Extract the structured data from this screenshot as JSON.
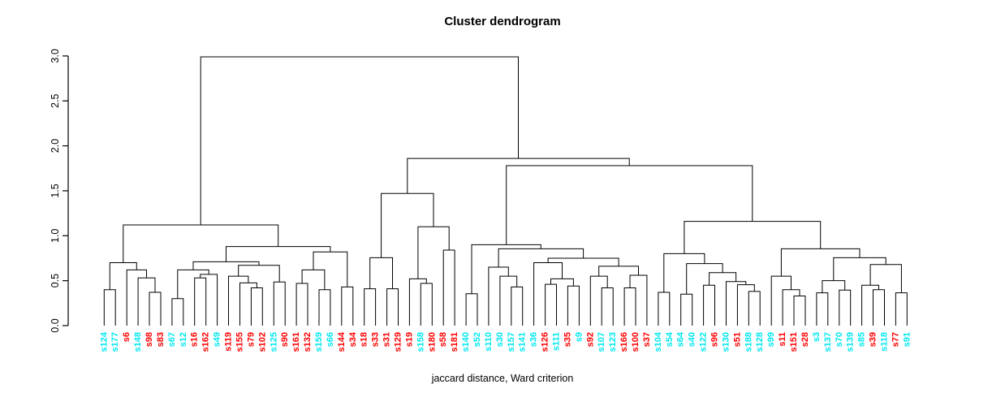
{
  "title": "Cluster dendrogram",
  "x_caption": "jaccard distance, Ward criterion",
  "chart_data": {
    "type": "dendrogram",
    "title": "Cluster dendrogram",
    "caption": "jaccard distance, Ward criterion",
    "y_axis": {
      "ticks": [
        "0.0",
        "0.5",
        "1.0",
        "1.5",
        "2.0",
        "2.5",
        "3.0"
      ],
      "range": [
        0,
        3.0
      ],
      "grid": false
    },
    "legend": "none",
    "label_palette": {
      "cyan": "#00E8F0",
      "red": "#FF0000"
    },
    "line_color": "#000000",
    "leaf_colors": {
      "s124": "cyan",
      "s177": "cyan",
      "s6": "red",
      "s148": "cyan",
      "s98": "red",
      "s83": "red",
      "s67": "cyan",
      "s12": "cyan",
      "s16": "red",
      "s162": "red",
      "s49": "cyan",
      "s119": "red",
      "s155": "red",
      "s79": "red",
      "s102": "red",
      "s125": "cyan",
      "s90": "red",
      "s161": "red",
      "s132": "red",
      "s159": "cyan",
      "s66": "cyan",
      "s144": "red",
      "s34": "red",
      "s18": "red",
      "s33": "red",
      "s31": "red",
      "s129": "red",
      "s19": "red",
      "s158": "cyan",
      "s180": "red",
      "s58": "red",
      "s181": "red",
      "s140": "cyan",
      "s52": "cyan",
      "s110": "cyan",
      "s30": "cyan",
      "s157": "cyan",
      "s141": "cyan",
      "s36": "cyan",
      "s126": "red",
      "s111": "cyan",
      "s35": "red",
      "s9": "cyan",
      "s92": "red",
      "s107": "cyan",
      "s123": "cyan",
      "s166": "red",
      "s100": "red",
      "s37": "red",
      "s104": "cyan",
      "s54": "cyan",
      "s64": "cyan",
      "s40": "cyan",
      "s122": "cyan",
      "s96": "red",
      "s130": "cyan",
      "s51": "red",
      "s188": "cyan",
      "s128": "cyan",
      "s99": "cyan",
      "s11": "red",
      "s151": "red",
      "s28": "red",
      "s3": "cyan",
      "s137": "cyan",
      "s70": "cyan",
      "s139": "cyan",
      "s85": "cyan",
      "s39": "red",
      "s118": "cyan",
      "s77": "red",
      "s91": "cyan"
    },
    "tree": {
      "h": 2.99,
      "c": [
        {
          "h": 1.12,
          "c": [
            {
              "h": 0.7,
              "c": [
                {
                  "h": 0.4,
                  "c": [
                    "s124",
                    "s177"
                  ]
                },
                {
                  "h": 0.62,
                  "c": [
                    "s6",
                    {
                      "h": 0.53,
                      "c": [
                        "s148",
                        {
                          "h": 0.37,
                          "c": [
                            "s98",
                            "s83"
                          ]
                        }
                      ]
                    }
                  ]
                }
              ]
            },
            {
              "h": 0.88,
              "c": [
                {
                  "h": 0.71,
                  "c": [
                    {
                      "h": 0.62,
                      "c": [
                        {
                          "h": 0.3,
                          "c": [
                            "s67",
                            "s12"
                          ]
                        },
                        {
                          "h": 0.57,
                          "c": [
                            {
                              "h": 0.53,
                              "c": [
                                "s16",
                                "s162"
                              ]
                            },
                            "s49"
                          ]
                        }
                      ]
                    },
                    {
                      "h": 0.67,
                      "c": [
                        {
                          "h": 0.55,
                          "c": [
                            "s119",
                            {
                              "h": 0.475,
                              "c": [
                                "s155",
                                {
                                  "h": 0.42,
                                  "c": [
                                    "s79",
                                    "s102"
                                  ]
                                }
                              ]
                            }
                          ]
                        },
                        {
                          "h": 0.485,
                          "c": [
                            "s125",
                            "s90"
                          ]
                        }
                      ]
                    }
                  ]
                },
                {
                  "h": 0.82,
                  "c": [
                    {
                      "h": 0.62,
                      "c": [
                        {
                          "h": 0.47,
                          "c": [
                            "s161",
                            "s132"
                          ]
                        },
                        {
                          "h": 0.4,
                          "c": [
                            "s159",
                            "s66"
                          ]
                        }
                      ]
                    },
                    {
                      "h": 0.43,
                      "c": [
                        "s144",
                        "s34"
                      ]
                    }
                  ]
                }
              ]
            }
          ]
        },
        {
          "h": 1.86,
          "c": [
            {
              "h": 1.47,
              "c": [
                {
                  "h": 0.755,
                  "c": [
                    {
                      "h": 0.41,
                      "c": [
                        "s18",
                        "s33"
                      ]
                    },
                    {
                      "h": 0.41,
                      "c": [
                        "s31",
                        "s129"
                      ]
                    }
                  ]
                },
                {
                  "h": 1.1,
                  "c": [
                    {
                      "h": 0.52,
                      "c": [
                        "s19",
                        {
                          "h": 0.47,
                          "c": [
                            "s158",
                            "s180"
                          ]
                        }
                      ]
                    },
                    {
                      "h": 0.84,
                      "c": [
                        "s58",
                        "s181"
                      ]
                    }
                  ]
                }
              ]
            },
            {
              "h": 1.78,
              "c": [
                {
                  "h": 0.9,
                  "c": [
                    {
                      "h": 0.355,
                      "c": [
                        "s140",
                        "s52"
                      ]
                    },
                    {
                      "h": 0.855,
                      "c": [
                        {
                          "h": 0.65,
                          "c": [
                            "s110",
                            {
                              "h": 0.55,
                              "c": [
                                "s30",
                                {
                                  "h": 0.43,
                                  "c": [
                                    "s157",
                                    "s141"
                                  ]
                                }
                              ]
                            }
                          ]
                        },
                        {
                          "h": 0.75,
                          "c": [
                            {
                              "h": 0.7,
                              "c": [
                                "s36",
                                {
                                  "h": 0.52,
                                  "c": [
                                    {
                                      "h": 0.46,
                                      "c": [
                                        "s126",
                                        "s111"
                                      ]
                                    },
                                    {
                                      "h": 0.44,
                                      "c": [
                                        "s35",
                                        "s9"
                                      ]
                                    }
                                  ]
                                }
                              ]
                            },
                            {
                              "h": 0.66,
                              "c": [
                                {
                                  "h": 0.55,
                                  "c": [
                                    "s92",
                                    {
                                      "h": 0.42,
                                      "c": [
                                        "s107",
                                        "s123"
                                      ]
                                    }
                                  ]
                                },
                                {
                                  "h": 0.56,
                                  "c": [
                                    {
                                      "h": 0.42,
                                      "c": [
                                        "s166",
                                        "s100"
                                      ]
                                    },
                                    "s37"
                                  ]
                                }
                              ]
                            }
                          ]
                        }
                      ]
                    }
                  ]
                },
                {
                  "h": 1.16,
                  "c": [
                    {
                      "h": 0.8,
                      "c": [
                        {
                          "h": 0.37,
                          "c": [
                            "s104",
                            "s54"
                          ]
                        },
                        {
                          "h": 0.69,
                          "c": [
                            {
                              "h": 0.35,
                              "c": [
                                "s64",
                                "s40"
                              ]
                            },
                            {
                              "h": 0.59,
                              "c": [
                                {
                                  "h": 0.45,
                                  "c": [
                                    "s122",
                                    "s96"
                                  ]
                                },
                                {
                                  "h": 0.49,
                                  "c": [
                                    "s130",
                                    {
                                      "h": 0.455,
                                      "c": [
                                        "s51",
                                        {
                                          "h": 0.38,
                                          "c": [
                                            "s188",
                                            "s128"
                                          ]
                                        }
                                      ]
                                    }
                                  ]
                                }
                              ]
                            }
                          ]
                        }
                      ]
                    },
                    {
                      "h": 0.855,
                      "c": [
                        {
                          "h": 0.55,
                          "c": [
                            "s99",
                            {
                              "h": 0.4,
                              "c": [
                                "s11",
                                {
                                  "h": 0.33,
                                  "c": [
                                    "s151",
                                    "s28"
                                  ]
                                }
                              ]
                            }
                          ]
                        },
                        {
                          "h": 0.755,
                          "c": [
                            {
                              "h": 0.5,
                              "c": [
                                {
                                  "h": 0.365,
                                  "c": [
                                    "s3",
                                    "s137"
                                  ]
                                },
                                {
                                  "h": 0.395,
                                  "c": [
                                    "s70",
                                    "s139"
                                  ]
                                }
                              ]
                            },
                            {
                              "h": 0.68,
                              "c": [
                                {
                                  "h": 0.45,
                                  "c": [
                                    "s85",
                                    {
                                      "h": 0.4,
                                      "c": [
                                        "s39",
                                        "s118"
                                      ]
                                    }
                                  ]
                                },
                                {
                                  "h": 0.365,
                                  "c": [
                                    "s77",
                                    "s91"
                                  ]
                                }
                              ]
                            }
                          ]
                        }
                      ]
                    }
                  ]
                }
              ]
            }
          ]
        }
      ]
    }
  }
}
